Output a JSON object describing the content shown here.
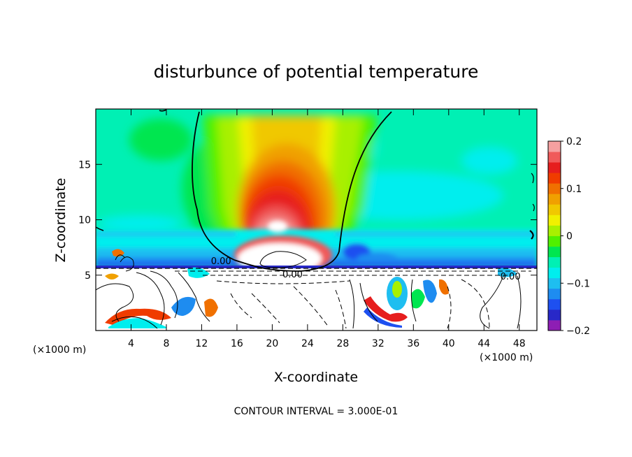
{
  "chart_data": {
    "type": "heatmap",
    "title": "disturbunce of potential temperature",
    "xlabel": "X-coordinate",
    "ylabel": "Z-coordinate",
    "x_unit_left": "(×1000 m)",
    "x_unit_right": "(×1000 m)",
    "xlim": [
      0,
      50
    ],
    "ylim": [
      0,
      20
    ],
    "x_ticks": [
      4,
      8,
      12,
      16,
      20,
      24,
      28,
      32,
      36,
      40,
      44,
      48
    ],
    "y_ticks": [
      5,
      10,
      15
    ],
    "colorbar": {
      "range": [
        -0.2,
        0.2
      ],
      "ticks": [
        {
          "value": 0.2,
          "label": "0.2"
        },
        {
          "value": 0.1,
          "label": "0.1"
        },
        {
          "value": 0,
          "label": "0"
        },
        {
          "value": -0.1,
          "label": "−0.1"
        },
        {
          "value": -0.2,
          "label": "−0.2"
        }
      ],
      "colors": [
        "#8e1eb4",
        "#2828c8",
        "#1e50f0",
        "#1e8cf0",
        "#1ebef0",
        "#00eeee",
        "#00f0b4",
        "#00e650",
        "#50f000",
        "#a8f000",
        "#f0f000",
        "#f0c800",
        "#f0a000",
        "#f07000",
        "#f03c00",
        "#e61e1e",
        "#f05a5a",
        "#f5a0a0"
      ]
    },
    "contour_labels": [
      {
        "text": "0.00",
        "x": 14.2,
        "y": 6.0
      },
      {
        "text": "0.00",
        "x": 22.3,
        "y": 4.8
      },
      {
        "text": "0.00",
        "x": 47.0,
        "y": 4.6
      }
    ],
    "footer": "CONTOUR INTERVAL = 3.000E-01"
  }
}
